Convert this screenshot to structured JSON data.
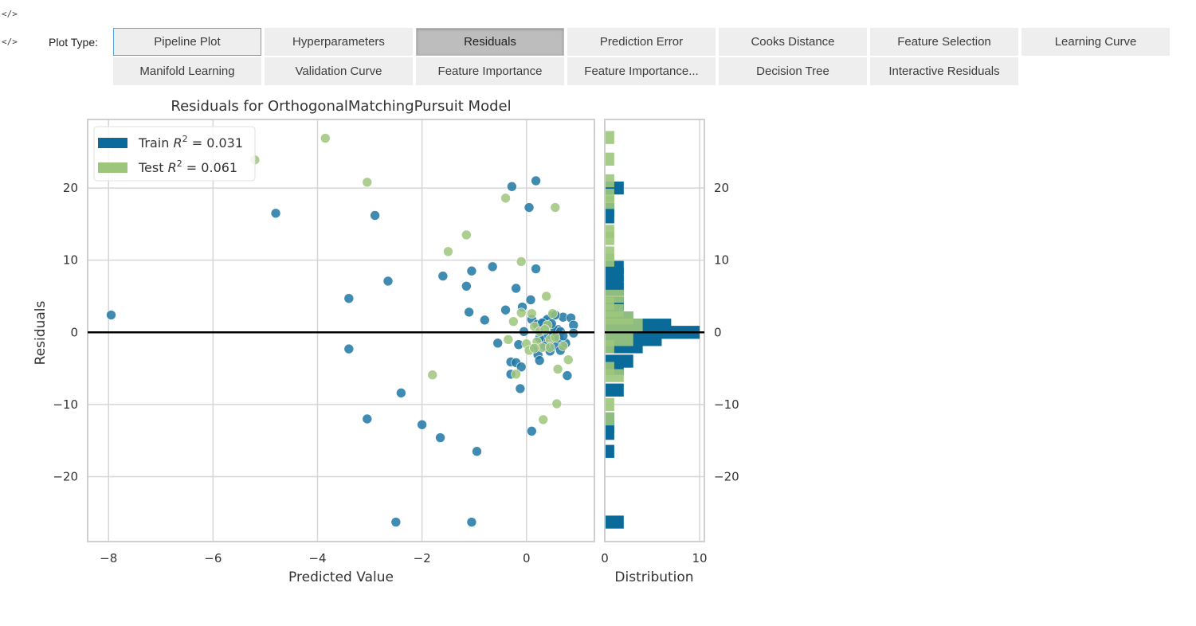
{
  "markers": [
    "</>",
    "</>"
  ],
  "plot_type_label": "Plot Type:",
  "buttons_row1": [
    "Pipeline Plot",
    "Hyperparameters",
    "Residuals",
    "Prediction Error",
    "Cooks Distance",
    "Feature Selection",
    "Learning Curve"
  ],
  "buttons_row2": [
    "Manifold Learning",
    "Validation Curve",
    "Feature Importance",
    "Feature Importance...",
    "Decision Tree",
    "Interactive Residuals"
  ],
  "colors": {
    "train": "#1f77a4",
    "train_bar": "#0a6b9a",
    "test": "#9dc67c",
    "grid": "#d6d6d6",
    "frame": "#cfcfcf",
    "zero_line": "#000000",
    "focus_border": "#58a6d8",
    "active_button": "#bdbdbd"
  },
  "chart_data": {
    "type": "scatter",
    "title": "Residuals for OrthogonalMatchingPursuit Model",
    "xlabel": "Predicted Value",
    "ylabel": "Residuals",
    "hist_xlabel": "Distribution",
    "xlim": [
      -8.4,
      1.3
    ],
    "ylim": [
      -29,
      29.5
    ],
    "xticks": [
      -8,
      -6,
      -4,
      -2,
      0
    ],
    "xtick_labels": [
      "−8",
      "−6",
      "−4",
      "−2",
      "0"
    ],
    "yticks": [
      -20,
      -10,
      0,
      10,
      20
    ],
    "ytick_labels": [
      "−20",
      "−10",
      "0",
      "10",
      "20"
    ],
    "hist_xlim": [
      0,
      10.5
    ],
    "hist_xticks": [
      0,
      10
    ],
    "hist_xtick_labels": [
      "0",
      "10"
    ],
    "grid": true,
    "legend_position": "top-left",
    "legend": [
      {
        "series": "train",
        "prefix": "Train ",
        "r2": "R",
        "sup": "2",
        "suffix": " = 0.031"
      },
      {
        "series": "test",
        "prefix": "Test ",
        "r2": "R",
        "sup": "2",
        "suffix": " = 0.061"
      }
    ],
    "series": [
      {
        "name": "Train",
        "points": [
          [
            -7.95,
            2.4
          ],
          [
            -4.8,
            16.5
          ],
          [
            -3.4,
            4.7
          ],
          [
            -3.4,
            -2.3
          ],
          [
            -3.05,
            -12
          ],
          [
            -2.9,
            16.2
          ],
          [
            -2.65,
            7.1
          ],
          [
            -2.4,
            -8.4
          ],
          [
            -2.0,
            -12.8
          ],
          [
            -1.65,
            -14.6
          ],
          [
            -1.6,
            7.8
          ],
          [
            -1.15,
            6.4
          ],
          [
            -1.1,
            2.8
          ],
          [
            -1.05,
            8.5
          ],
          [
            -1.05,
            -26.3
          ],
          [
            -0.95,
            -16.5
          ],
          [
            -0.8,
            1.7
          ],
          [
            -0.65,
            9.1
          ],
          [
            -0.55,
            -1.5
          ],
          [
            -0.4,
            3.1
          ],
          [
            -0.3,
            -4.1
          ],
          [
            -0.3,
            -5.8
          ],
          [
            -0.28,
            20.2
          ],
          [
            -0.2,
            6.1
          ],
          [
            -0.2,
            -4.2
          ],
          [
            -0.15,
            -1.7
          ],
          [
            -0.12,
            -7.8
          ],
          [
            -0.1,
            -4.8
          ],
          [
            -0.08,
            3.5
          ],
          [
            -0.05,
            0.1
          ],
          [
            0.05,
            17.3
          ],
          [
            0.08,
            4.5
          ],
          [
            0.1,
            1.8
          ],
          [
            0.1,
            -13.7
          ],
          [
            0.15,
            -2.2
          ],
          [
            0.18,
            21.0
          ],
          [
            0.18,
            8.8
          ],
          [
            0.2,
            1.1
          ],
          [
            0.22,
            -3.1
          ],
          [
            0.25,
            -3.9
          ],
          [
            0.3,
            0.6
          ],
          [
            0.32,
            -1.2
          ],
          [
            0.35,
            1.5
          ],
          [
            0.4,
            -0.3
          ],
          [
            0.45,
            0.9
          ],
          [
            0.45,
            -2.6
          ],
          [
            0.5,
            2.3
          ],
          [
            0.55,
            -1.8
          ],
          [
            0.6,
            0.4
          ],
          [
            0.65,
            -2.5
          ],
          [
            0.7,
            2.1
          ],
          [
            0.75,
            -1.5
          ],
          [
            0.78,
            -6.0
          ],
          [
            0.85,
            2.0
          ],
          [
            0.9,
            1.0
          ],
          [
            0.9,
            -0.1
          ],
          [
            0.4,
            1.8
          ],
          [
            0.55,
            0.3
          ],
          [
            0.25,
            -0.8
          ],
          [
            0.35,
            -1.9
          ],
          [
            0.5,
            -0.6
          ],
          [
            0.65,
            0.1
          ],
          [
            0.3,
            1.3
          ],
          [
            -2.5,
            -26.3
          ],
          [
            0.62,
            -0.8
          ],
          [
            0.48,
            1.2
          ],
          [
            0.55,
            2.4
          ],
          [
            0.7,
            -0.5
          ]
        ]
      },
      {
        "name": "Test",
        "points": [
          [
            -5.2,
            23.9
          ],
          [
            -3.85,
            26.9
          ],
          [
            -3.05,
            20.8
          ],
          [
            -1.8,
            -5.9
          ],
          [
            -1.5,
            11.2
          ],
          [
            -1.15,
            13.5
          ],
          [
            -0.4,
            18.6
          ],
          [
            -0.25,
            1.5
          ],
          [
            -0.2,
            -5.8
          ],
          [
            -0.1,
            9.8
          ],
          [
            -0.1,
            2.7
          ],
          [
            0.0,
            -1.6
          ],
          [
            0.05,
            -2.5
          ],
          [
            0.1,
            2.6
          ],
          [
            0.15,
            0.8
          ],
          [
            0.2,
            -1.3
          ],
          [
            0.25,
            0.1
          ],
          [
            0.3,
            -2.1
          ],
          [
            0.32,
            -12.1
          ],
          [
            0.38,
            5.0
          ],
          [
            0.4,
            1.0
          ],
          [
            0.45,
            -1.0
          ],
          [
            0.5,
            2.6
          ],
          [
            0.55,
            17.3
          ],
          [
            0.55,
            -0.7
          ],
          [
            0.58,
            -9.9
          ],
          [
            0.6,
            -5.1
          ],
          [
            0.7,
            -1.9
          ],
          [
            0.8,
            -3.8
          ],
          [
            0.35,
            0.4
          ],
          [
            0.15,
            -2.2
          ],
          [
            -0.35,
            -1.0
          ],
          [
            0.45,
            -2.1
          ]
        ]
      }
    ],
    "histogram": {
      "train": [
        [
          -26.3,
          2
        ],
        [
          -16.5,
          1
        ],
        [
          -14,
          1
        ],
        [
          -13,
          1
        ],
        [
          -12,
          1
        ],
        [
          -8,
          2
        ],
        [
          -5,
          2
        ],
        [
          -4,
          3
        ],
        [
          -2,
          4
        ],
        [
          -1,
          6
        ],
        [
          0,
          10
        ],
        [
          1,
          7
        ],
        [
          2,
          3
        ],
        [
          3,
          2
        ],
        [
          4,
          2
        ],
        [
          6,
          2
        ],
        [
          7,
          2
        ],
        [
          8,
          2
        ],
        [
          9,
          2
        ],
        [
          16,
          1
        ],
        [
          17,
          1
        ],
        [
          20,
          2
        ]
      ],
      "test": [
        [
          -12,
          1
        ],
        [
          -10,
          1
        ],
        [
          -6,
          2
        ],
        [
          -5,
          1
        ],
        [
          -2,
          1
        ],
        [
          -1,
          3
        ],
        [
          1,
          4
        ],
        [
          2,
          3
        ],
        [
          3,
          2
        ],
        [
          4,
          1
        ],
        [
          5,
          2
        ],
        [
          10,
          1
        ],
        [
          11,
          1
        ],
        [
          13,
          1
        ],
        [
          14,
          1
        ],
        [
          18,
          1
        ],
        [
          19,
          1
        ],
        [
          21,
          1
        ],
        [
          24,
          1
        ],
        [
          27,
          1
        ]
      ]
    }
  }
}
